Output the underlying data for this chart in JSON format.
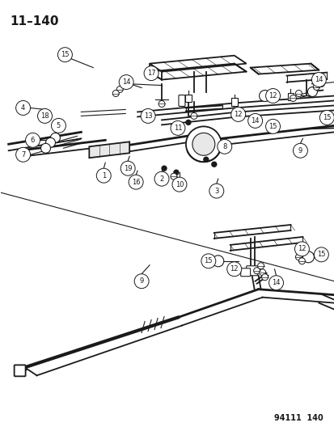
{
  "title_text": "11–140",
  "footer_text": "94111  140",
  "background_color": "#ffffff",
  "line_color": "#1a1a1a",
  "figsize": [
    4.14,
    5.33
  ],
  "dpi": 100
}
